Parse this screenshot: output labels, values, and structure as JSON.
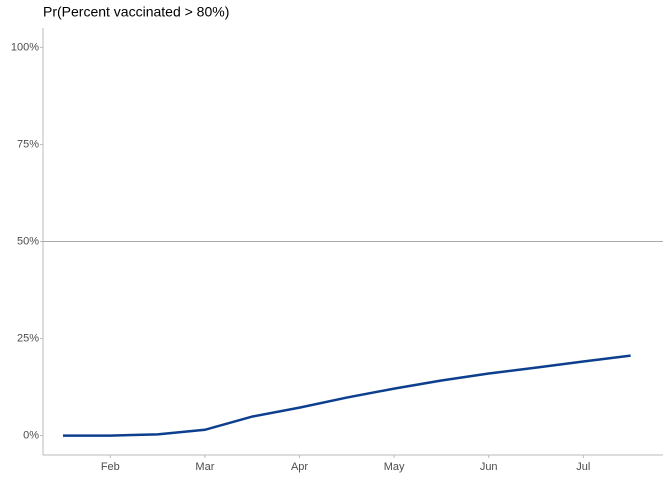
{
  "chart_data": {
    "type": "line",
    "title": "Pr(Percent vaccinated > 80%)",
    "x": [
      null,
      "Feb",
      null,
      "Mar",
      null,
      "Apr",
      null,
      "May",
      null,
      "Jun",
      null,
      "Jul",
      null
    ],
    "series": [
      {
        "color": "#0d3f8f",
        "values": [
          0,
          0,
          0.3,
          1.5,
          4.9,
          7.2,
          9.8,
          12.1,
          14.2,
          16.0,
          17.5,
          19.1,
          20.6
        ]
      }
    ],
    "ylim": [
      -5,
      105
    ],
    "yticks": [
      {
        "value": 0,
        "label": "0%"
      },
      {
        "value": 25,
        "label": "25%"
      },
      {
        "value": 50,
        "label": "50%"
      },
      {
        "value": 75,
        "label": "75%"
      },
      {
        "value": 100,
        "label": "100%"
      }
    ],
    "reference_line": 50
  }
}
